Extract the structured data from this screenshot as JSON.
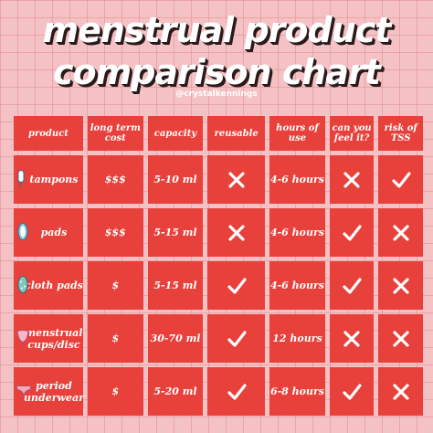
{
  "title": {
    "line1": "menstrual product",
    "line2": "comparison chart"
  },
  "handle": "@crystalkennings",
  "table": {
    "headers": [
      "product",
      "long term cost",
      "capacity",
      "reusable",
      "hours of use",
      "can you feel it?",
      "risk of TSS"
    ],
    "rows": [
      {
        "product": "tampons",
        "icon": "tampon-icon",
        "cost": "$$$",
        "capacity": "5-10 ml",
        "reusable": false,
        "hours": "4-6 hours",
        "feel": false,
        "tss": true
      },
      {
        "product": "pads",
        "icon": "pad-icon",
        "cost": "$$$",
        "capacity": "5-15 ml",
        "reusable": false,
        "hours": "4-6 hours",
        "feel": true,
        "tss": false
      },
      {
        "product": "cloth pads",
        "icon": "cloth-pad-icon",
        "cost": "$",
        "capacity": "5-15 ml",
        "reusable": true,
        "hours": "4-6 hours",
        "feel": true,
        "tss": false
      },
      {
        "product": "menstrual cups/disc",
        "icon": "cup-icon",
        "cost": "$",
        "capacity": "30-70 ml",
        "reusable": true,
        "hours": "12 hours",
        "feel": false,
        "tss": false
      },
      {
        "product": "period underwear",
        "icon": "underwear-icon",
        "cost": "$",
        "capacity": "5-20 ml",
        "reusable": true,
        "hours": "6-8 hours",
        "feel": true,
        "tss": false
      }
    ]
  },
  "colors": {
    "background": "#f4c1c4",
    "cell": "#e8403a",
    "text": "#ffffff"
  }
}
